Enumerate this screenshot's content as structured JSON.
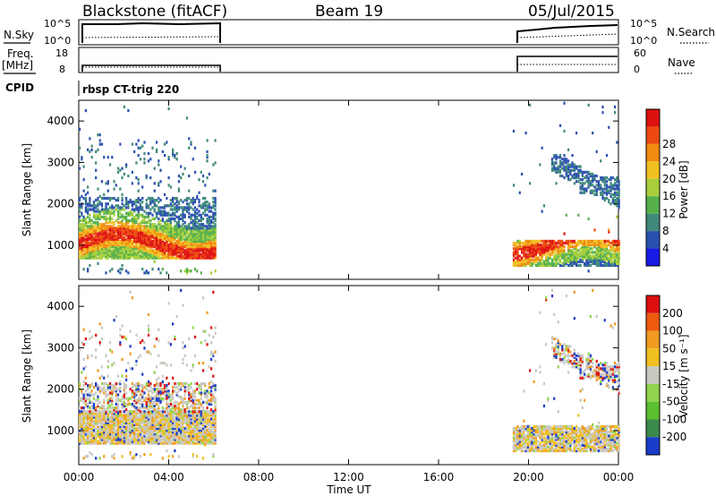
{
  "header": {
    "radar": "Blackstone (fitACF)",
    "beam": "Beam 19",
    "date": "05/Jul/2015"
  },
  "labels": {
    "nsky": "N.Sky",
    "nsearch": "N.Search",
    "freq": "Freq.",
    "freq_unit": "[MHz]",
    "nave": "Nave",
    "cpid": "CPID",
    "cpid_value": "rbsp CT-trig 220",
    "slant_range": "Slant Range [km]",
    "power_label": "Power [dB]",
    "velocity_label": "Velocity [m s⁻¹]",
    "xlabel": "Time UT",
    "noise_ticks_top": "10^5",
    "noise_ticks_bottom": "10^0",
    "freq_tick_top": "18",
    "freq_tick_bottom": "8",
    "nave_tick_top": "60",
    "nave_tick_bottom": "0"
  },
  "chart_data": [
    {
      "type": "heatmap",
      "title": "Power",
      "xlabel": "Time UT",
      "ylabel": "Slant Range [km]",
      "x_ticks": [
        "00:00",
        "04:00",
        "08:00",
        "12:00",
        "16:00",
        "20:00",
        "00:00"
      ],
      "x_range_hours": [
        0,
        24
      ],
      "y_ticks": [
        1000,
        2000,
        3000,
        4000
      ],
      "y_range_km": [
        180,
        4500
      ],
      "colorbar_label": "Power [dB]",
      "colorbar_ticks": [
        4,
        8,
        12,
        16,
        20,
        24,
        28
      ],
      "colors": [
        "#1a1ae6",
        "#2a4fb0",
        "#3f8a7a",
        "#55b04a",
        "#a8cf3a",
        "#f0c020",
        "#f08a10",
        "#ee4a10",
        "#dd1010"
      ],
      "data_windows_hours": [
        [
          0,
          6.1
        ],
        [
          19.3,
          24
        ]
      ]
    },
    {
      "type": "heatmap",
      "title": "Velocity",
      "xlabel": "Time UT",
      "ylabel": "Slant Range [km]",
      "x_ticks": [
        "00:00",
        "04:00",
        "08:00",
        "12:00",
        "16:00",
        "20:00",
        "00:00"
      ],
      "x_range_hours": [
        0,
        24
      ],
      "y_ticks": [
        1000,
        2000,
        3000,
        4000
      ],
      "y_range_km": [
        180,
        4500
      ],
      "colorbar_label": "Velocity [m s⁻¹]",
      "colorbar_ticks": [
        200,
        100,
        50,
        15,
        -15,
        -50,
        -100,
        -200
      ],
      "colors": [
        "#1a3cc8",
        "#3a8a4a",
        "#5ac030",
        "#8fd44a",
        "#c8c8c0",
        "#f0c020",
        "#f09a20",
        "#ee5a10",
        "#dd1010"
      ],
      "data_windows_hours": [
        [
          0,
          6.1
        ],
        [
          19.3,
          24
        ]
      ]
    }
  ]
}
